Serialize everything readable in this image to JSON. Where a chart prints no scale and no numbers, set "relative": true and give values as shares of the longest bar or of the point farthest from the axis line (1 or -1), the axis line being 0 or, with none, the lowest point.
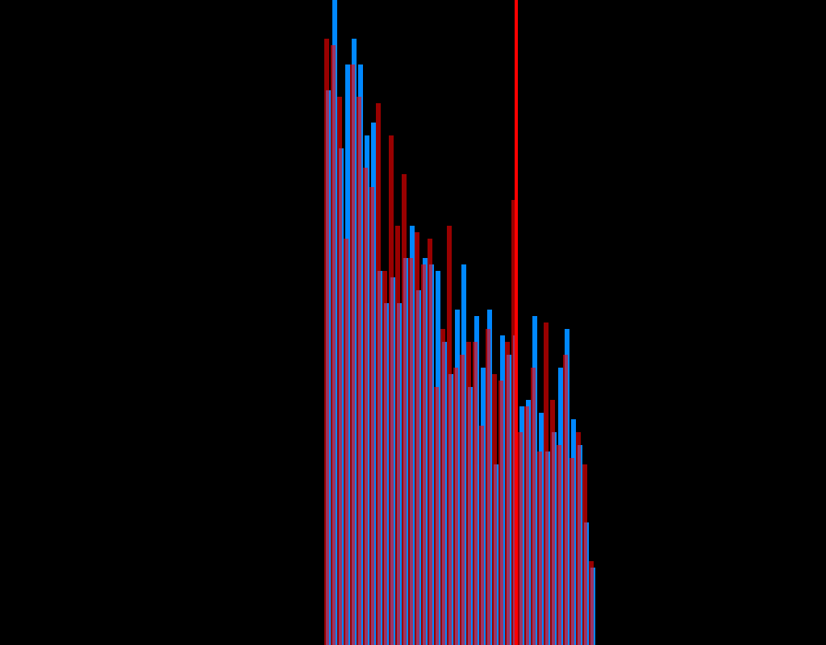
{
  "chart_data": {
    "type": "bar",
    "relative": true,
    "categories": [
      null,
      null,
      null,
      null,
      null,
      null,
      null,
      null,
      null,
      null,
      null,
      null,
      null,
      null,
      null,
      null,
      null,
      null,
      null,
      null,
      null,
      null,
      null,
      null,
      null,
      null,
      null,
      null,
      null,
      null,
      null,
      null,
      null,
      null,
      null,
      null,
      null,
      null,
      null,
      null,
      null,
      null
    ],
    "series": [
      {
        "color": "#0088ff",
        "values": [
          0.86,
          1,
          0.77,
          0.9,
          0.94,
          0.9,
          0.79,
          0.81,
          0.58,
          0.53,
          0.57,
          0.53,
          0.6,
          0.65,
          0.55,
          0.6,
          0.59,
          0.58,
          0.47,
          0.42,
          0.52,
          0.59,
          0.4,
          0.51,
          0.43,
          0.52,
          0.28,
          0.48,
          0.45,
          0.48,
          0.37,
          0.38,
          0.51,
          0.36,
          0.3,
          0.33,
          0.43,
          0.49,
          0.35,
          0.31,
          0.19,
          0.12
        ]
      },
      {
        "color": "#ff0000",
        "values": [
          0.94,
          0.93,
          0.85,
          0.63,
          0.9,
          0.85,
          0.74,
          0.71,
          0.84,
          0.58,
          0.79,
          0.65,
          0.73,
          0.6,
          0.64,
          0.59,
          0.63,
          0.4,
          0.49,
          0.65,
          0.43,
          0.45,
          0.47,
          0.47,
          0.34,
          0.49,
          0.42,
          0.41,
          0.47,
          0.69,
          0.33,
          0.37,
          0.43,
          0.3,
          0.5,
          0.38,
          0.31,
          0.45,
          0.29,
          0.33,
          0.28,
          0.13
        ]
      }
    ],
    "legend": false,
    "grid": false
  }
}
